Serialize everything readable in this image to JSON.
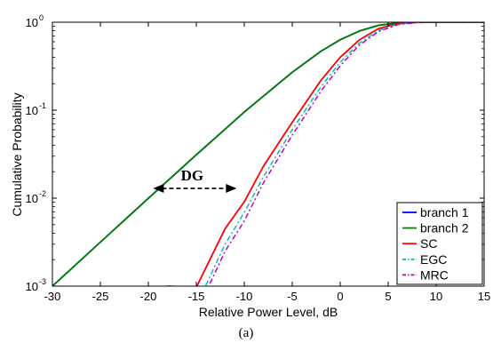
{
  "chart_data": {
    "type": "line",
    "xlabel": "Relative Power Level, dB",
    "ylabel": "Cumulative Probability",
    "caption": "(a)",
    "xlim": [
      -30,
      15
    ],
    "ylim": [
      0.001,
      1
    ],
    "yscale": "log",
    "grid": false,
    "legend_position": "bottom-right",
    "x_ticks": [
      -30,
      -25,
      -20,
      -15,
      -10,
      -5,
      0,
      5,
      10,
      15
    ],
    "y_ticks": [
      {
        "base": "10",
        "exp": "-3"
      },
      {
        "base": "10",
        "exp": "-2"
      },
      {
        "base": "10",
        "exp": "-1"
      },
      {
        "base": "10",
        "exp": "0"
      }
    ],
    "series": [
      {
        "name": "branch 1",
        "color": "#0000ff",
        "dash": "solid",
        "x": [
          -30,
          -25,
          -20,
          -15,
          -10,
          -5,
          -2,
          0,
          2,
          4,
          6,
          8,
          10,
          15
        ],
        "y": [
          0.001,
          0.00316,
          0.00995,
          0.0311,
          0.0952,
          0.27,
          0.468,
          0.632,
          0.794,
          0.921,
          0.982,
          0.998,
          1.0,
          1.0
        ]
      },
      {
        "name": "branch 2",
        "color": "#008000",
        "dash": "solid",
        "x": [
          -30,
          -25,
          -20,
          -15,
          -10,
          -5,
          -2,
          0,
          2,
          4,
          6,
          8,
          10,
          15
        ],
        "y": [
          0.001,
          0.00316,
          0.00995,
          0.0311,
          0.0952,
          0.27,
          0.468,
          0.632,
          0.794,
          0.921,
          0.982,
          0.998,
          1.0,
          1.0
        ]
      },
      {
        "name": "SC",
        "color": "#ff0000",
        "dash": "solid",
        "x": [
          -18,
          -15,
          -12,
          -10,
          -8,
          -5,
          -2,
          0,
          2,
          4,
          6,
          8,
          10,
          15
        ],
        "y": [
          0.001,
          0.00097,
          0.0045,
          0.0091,
          0.0231,
          0.0729,
          0.219,
          0.4,
          0.63,
          0.848,
          0.964,
          0.996,
          1.0,
          1.0
        ]
      },
      {
        "name": "EGC",
        "color": "#00bfbf",
        "dash": "dash-dot",
        "x": [
          -17,
          -15,
          -12,
          -10,
          -8,
          -5,
          -2,
          0,
          2,
          4,
          6,
          8,
          10,
          15
        ],
        "y": [
          0.001,
          0.0006,
          0.003,
          0.0069,
          0.0175,
          0.06,
          0.185,
          0.35,
          0.58,
          0.81,
          0.95,
          0.993,
          1.0,
          1.0
        ]
      },
      {
        "name": "MRC",
        "color": "#bf00bf",
        "dash": "dash-dot",
        "x": [
          -16.5,
          -15,
          -12,
          -10,
          -8,
          -5,
          -2,
          0,
          2,
          4,
          6,
          8,
          10,
          15
        ],
        "y": [
          0.001,
          0.0005,
          0.0025,
          0.0055,
          0.015,
          0.052,
          0.165,
          0.32,
          0.55,
          0.785,
          0.94,
          0.991,
          1.0,
          1.0
        ]
      }
    ],
    "annotation": {
      "text": "DG",
      "arrow_from": {
        "x": -19.5,
        "y": 0.0129
      },
      "arrow_to": {
        "x": -10.8,
        "y": 0.0129
      }
    }
  }
}
